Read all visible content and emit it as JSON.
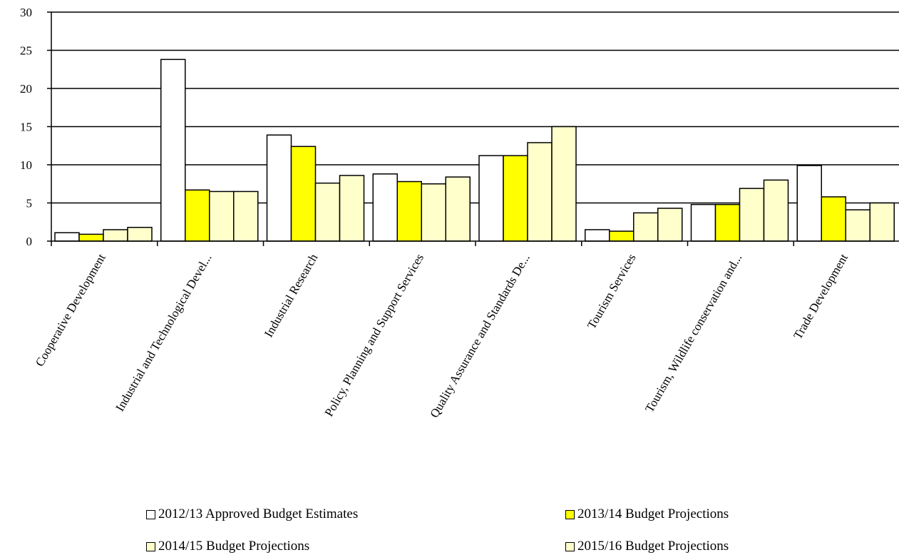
{
  "chart_data": {
    "type": "bar",
    "title": "",
    "xlabel": "",
    "ylabel": "",
    "ylim": [
      0,
      30
    ],
    "yticks": [
      0,
      5,
      10,
      15,
      20,
      25,
      30
    ],
    "grid": "horizontal",
    "legend_position": "bottom",
    "categories": [
      "Cooperative Development",
      "Industrial and Technological Devel...",
      "Industrial Research",
      "Policy, Planning and Support Services",
      "Quality Assurance and Standards De...",
      "Tourism Services",
      "Tourism, Wildlife conservation and...",
      "Trade Development"
    ],
    "series": [
      {
        "name": "2012/13 Approved Budget Estimates",
        "color": "#ffffff",
        "values": [
          1.1,
          23.8,
          13.9,
          8.8,
          11.2,
          1.5,
          4.8,
          9.9
        ]
      },
      {
        "name": "2013/14 Budget Projections",
        "color": "#ffff00",
        "values": [
          0.9,
          6.7,
          12.4,
          7.8,
          11.2,
          1.3,
          4.8,
          5.8
        ]
      },
      {
        "name": "2014/15 Budget Projections",
        "color": "#ffffcc",
        "values": [
          1.5,
          6.5,
          7.6,
          7.5,
          12.9,
          3.7,
          6.9,
          4.1
        ]
      },
      {
        "name": "2015/16 Budget Projections",
        "color": "#ffffcc",
        "values": [
          1.8,
          6.5,
          8.6,
          8.4,
          15.0,
          4.3,
          8.0,
          5.0
        ]
      }
    ]
  }
}
